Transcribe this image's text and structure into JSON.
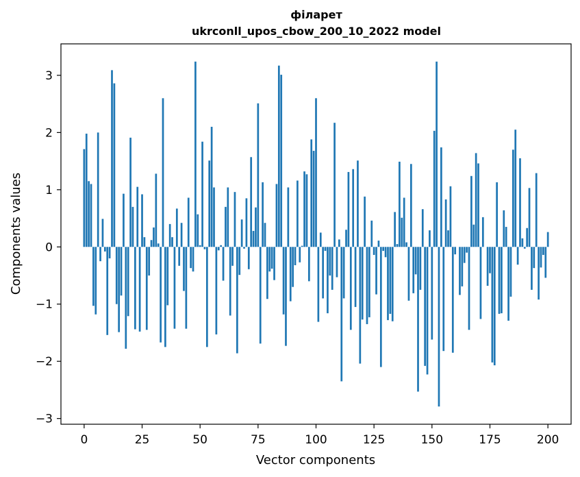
{
  "chart_data": {
    "type": "bar",
    "title_line1": "філарет",
    "title_line2": "ukrconll_upos_cbow_200_10_2022 model",
    "xlabel": "Vector components",
    "ylabel": "Components values",
    "xlim": [
      -10,
      210
    ],
    "ylim": [
      -3.1,
      3.55
    ],
    "xticks": [
      0,
      25,
      50,
      75,
      100,
      125,
      150,
      175,
      200
    ],
    "yticks": [
      -3,
      -2,
      -1,
      0,
      1,
      2,
      3
    ],
    "bar_color": "#1f77b4",
    "grid": false,
    "values": [
      1.71,
      1.98,
      1.15,
      1.1,
      -1.03,
      -1.18,
      2.0,
      -0.25,
      0.49,
      -0.08,
      -1.54,
      -0.2,
      3.09,
      2.86,
      -1.0,
      -1.49,
      -0.85,
      0.93,
      -1.78,
      -1.21,
      1.91,
      0.7,
      -1.44,
      1.05,
      -1.48,
      0.92,
      0.17,
      -1.45,
      -0.5,
      0.12,
      0.34,
      1.28,
      0.06,
      -1.67,
      2.6,
      -1.75,
      -1.02,
      0.4,
      0.17,
      -1.43,
      0.67,
      -0.33,
      0.42,
      -0.77,
      -1.43,
      0.86,
      -0.37,
      -0.43,
      3.24,
      0.57,
      0.03,
      1.84,
      -0.04,
      -1.75,
      1.51,
      2.1,
      1.04,
      -1.53,
      -0.06,
      0.03,
      -0.59,
      0.7,
      1.04,
      -1.2,
      -0.33,
      0.96,
      -1.86,
      -0.49,
      0.48,
      -0.03,
      0.85,
      -0.39,
      1.57,
      0.28,
      0.69,
      2.51,
      -1.69,
      1.13,
      0.42,
      -0.91,
      -0.43,
      -0.38,
      -0.58,
      1.1,
      3.17,
      3.01,
      -1.18,
      -1.73,
      1.04,
      -0.95,
      -0.7,
      -0.32,
      1.16,
      -0.27,
      0.02,
      1.32,
      1.27,
      -0.6,
      1.88,
      1.68,
      2.6,
      -1.31,
      0.25,
      -0.9,
      -0.07,
      -1.16,
      -0.5,
      -0.75,
      2.17,
      -0.53,
      0.13,
      -2.35,
      -0.9,
      0.3,
      1.31,
      -1.45,
      1.36,
      -1.05,
      1.51,
      -2.04,
      -1.27,
      0.88,
      -1.35,
      -1.23,
      0.46,
      -0.14,
      -0.83,
      0.11,
      -2.1,
      -0.07,
      -0.18,
      -1.28,
      -1.17,
      -1.3,
      0.61,
      0.05,
      1.49,
      0.51,
      0.86,
      0.08,
      -0.94,
      1.45,
      -0.81,
      -0.48,
      -2.53,
      -0.75,
      0.66,
      -2.08,
      -2.23,
      0.29,
      -1.62,
      2.03,
      3.24,
      -2.79,
      1.74,
      -1.82,
      0.83,
      0.29,
      1.06,
      -1.85,
      -0.13,
      0.0,
      -0.84,
      -0.69,
      -0.28,
      -0.1,
      -1.45,
      1.24,
      0.39,
      1.64,
      1.46,
      -1.26,
      0.52,
      0.0,
      -0.68,
      -0.46,
      -2.02,
      -2.07,
      1.13,
      -1.17,
      -1.16,
      0.64,
      0.35,
      -1.29,
      -0.87,
      1.7,
      2.05,
      -0.31,
      1.55,
      0.15,
      -0.03,
      0.33,
      1.03,
      -0.75,
      -0.37,
      1.29,
      -0.92,
      -0.36,
      -0.14,
      -0.54,
      0.26
    ]
  }
}
